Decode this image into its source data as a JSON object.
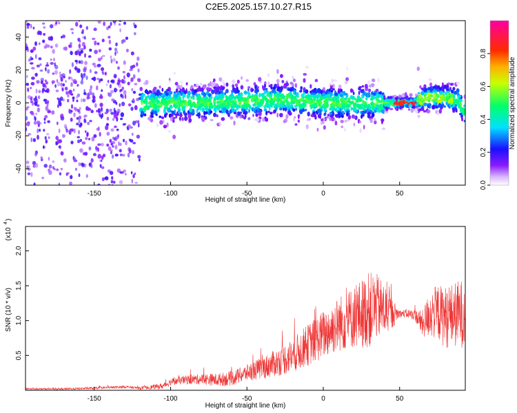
{
  "title": "C2E5.2025.157.10.27.R15",
  "chart_data": [
    {
      "type": "heatmap",
      "xlabel": "Height of straight line (km)",
      "ylabel": "Frequency (Hz)",
      "xlim": [
        -195,
        93
      ],
      "ylim": [
        -50,
        50
      ],
      "xticks": [
        -150,
        -100,
        -50,
        0,
        50
      ],
      "yticks": [
        -40,
        -20,
        0,
        20,
        40
      ],
      "ridge": {
        "x": [
          -195,
          -150,
          -125,
          -100,
          -75,
          -50,
          -25,
          0,
          20,
          45,
          60,
          63,
          70,
          80,
          88,
          93
        ],
        "y": [
          0,
          0,
          -1,
          0,
          0,
          1,
          2,
          0,
          0,
          0,
          0,
          2,
          3,
          3,
          2,
          -6
        ]
      },
      "colorbar": {
        "label": "Normalized spectral amplitude",
        "range": [
          0,
          1
        ],
        "ticks": [
          0.0,
          0.2,
          0.4,
          0.6,
          0.8
        ],
        "tick_labels": [
          "0.0",
          "0.2",
          "0.4",
          "0.6",
          "0.8"
        ]
      }
    },
    {
      "type": "line",
      "xlabel": "Height of straight line (km)",
      "ylabel": "SNR (10 * v/v)",
      "yscale_label": "(x10",
      "yscale_exp": "4",
      "xlim": [
        -195,
        93
      ],
      "ylim": [
        0,
        2.35
      ],
      "xticks": [
        -150,
        -100,
        -50,
        0,
        50
      ],
      "yticks": [
        0.5,
        1.0,
        1.5,
        2.0
      ],
      "ytick_labels": [
        "0.5",
        "1.0",
        "1.5",
        "2.0"
      ],
      "color": "#ee3333",
      "envelope": {
        "x": [
          -195,
          -170,
          -150,
          -130,
          -120,
          -105,
          -100,
          -90,
          -80,
          -70,
          -60,
          -50,
          -40,
          -30,
          -20,
          -10,
          0,
          10,
          20,
          30,
          35,
          40,
          45,
          50,
          55,
          60,
          65,
          70,
          75,
          80,
          85,
          90,
          93
        ],
        "y": [
          0.02,
          0.02,
          0.03,
          0.05,
          0.03,
          0.06,
          0.12,
          0.15,
          0.16,
          0.15,
          0.17,
          0.25,
          0.32,
          0.4,
          0.5,
          0.65,
          0.8,
          0.95,
          1.05,
          1.15,
          1.2,
          1.15,
          1.1,
          1.1,
          1.1,
          1.08,
          0.95,
          1.1,
          1.12,
          1.05,
          1.08,
          1.1,
          1.1
        ]
      },
      "spread": {
        "x": [
          -195,
          -120,
          -100,
          -50,
          -30,
          0,
          20,
          30,
          40,
          50,
          60,
          65,
          70,
          80,
          93
        ],
        "y": [
          0.01,
          0.02,
          0.05,
          0.12,
          0.2,
          0.35,
          0.45,
          0.55,
          0.4,
          0.05,
          0.08,
          0.2,
          0.35,
          0.45,
          0.5
        ]
      }
    }
  ]
}
